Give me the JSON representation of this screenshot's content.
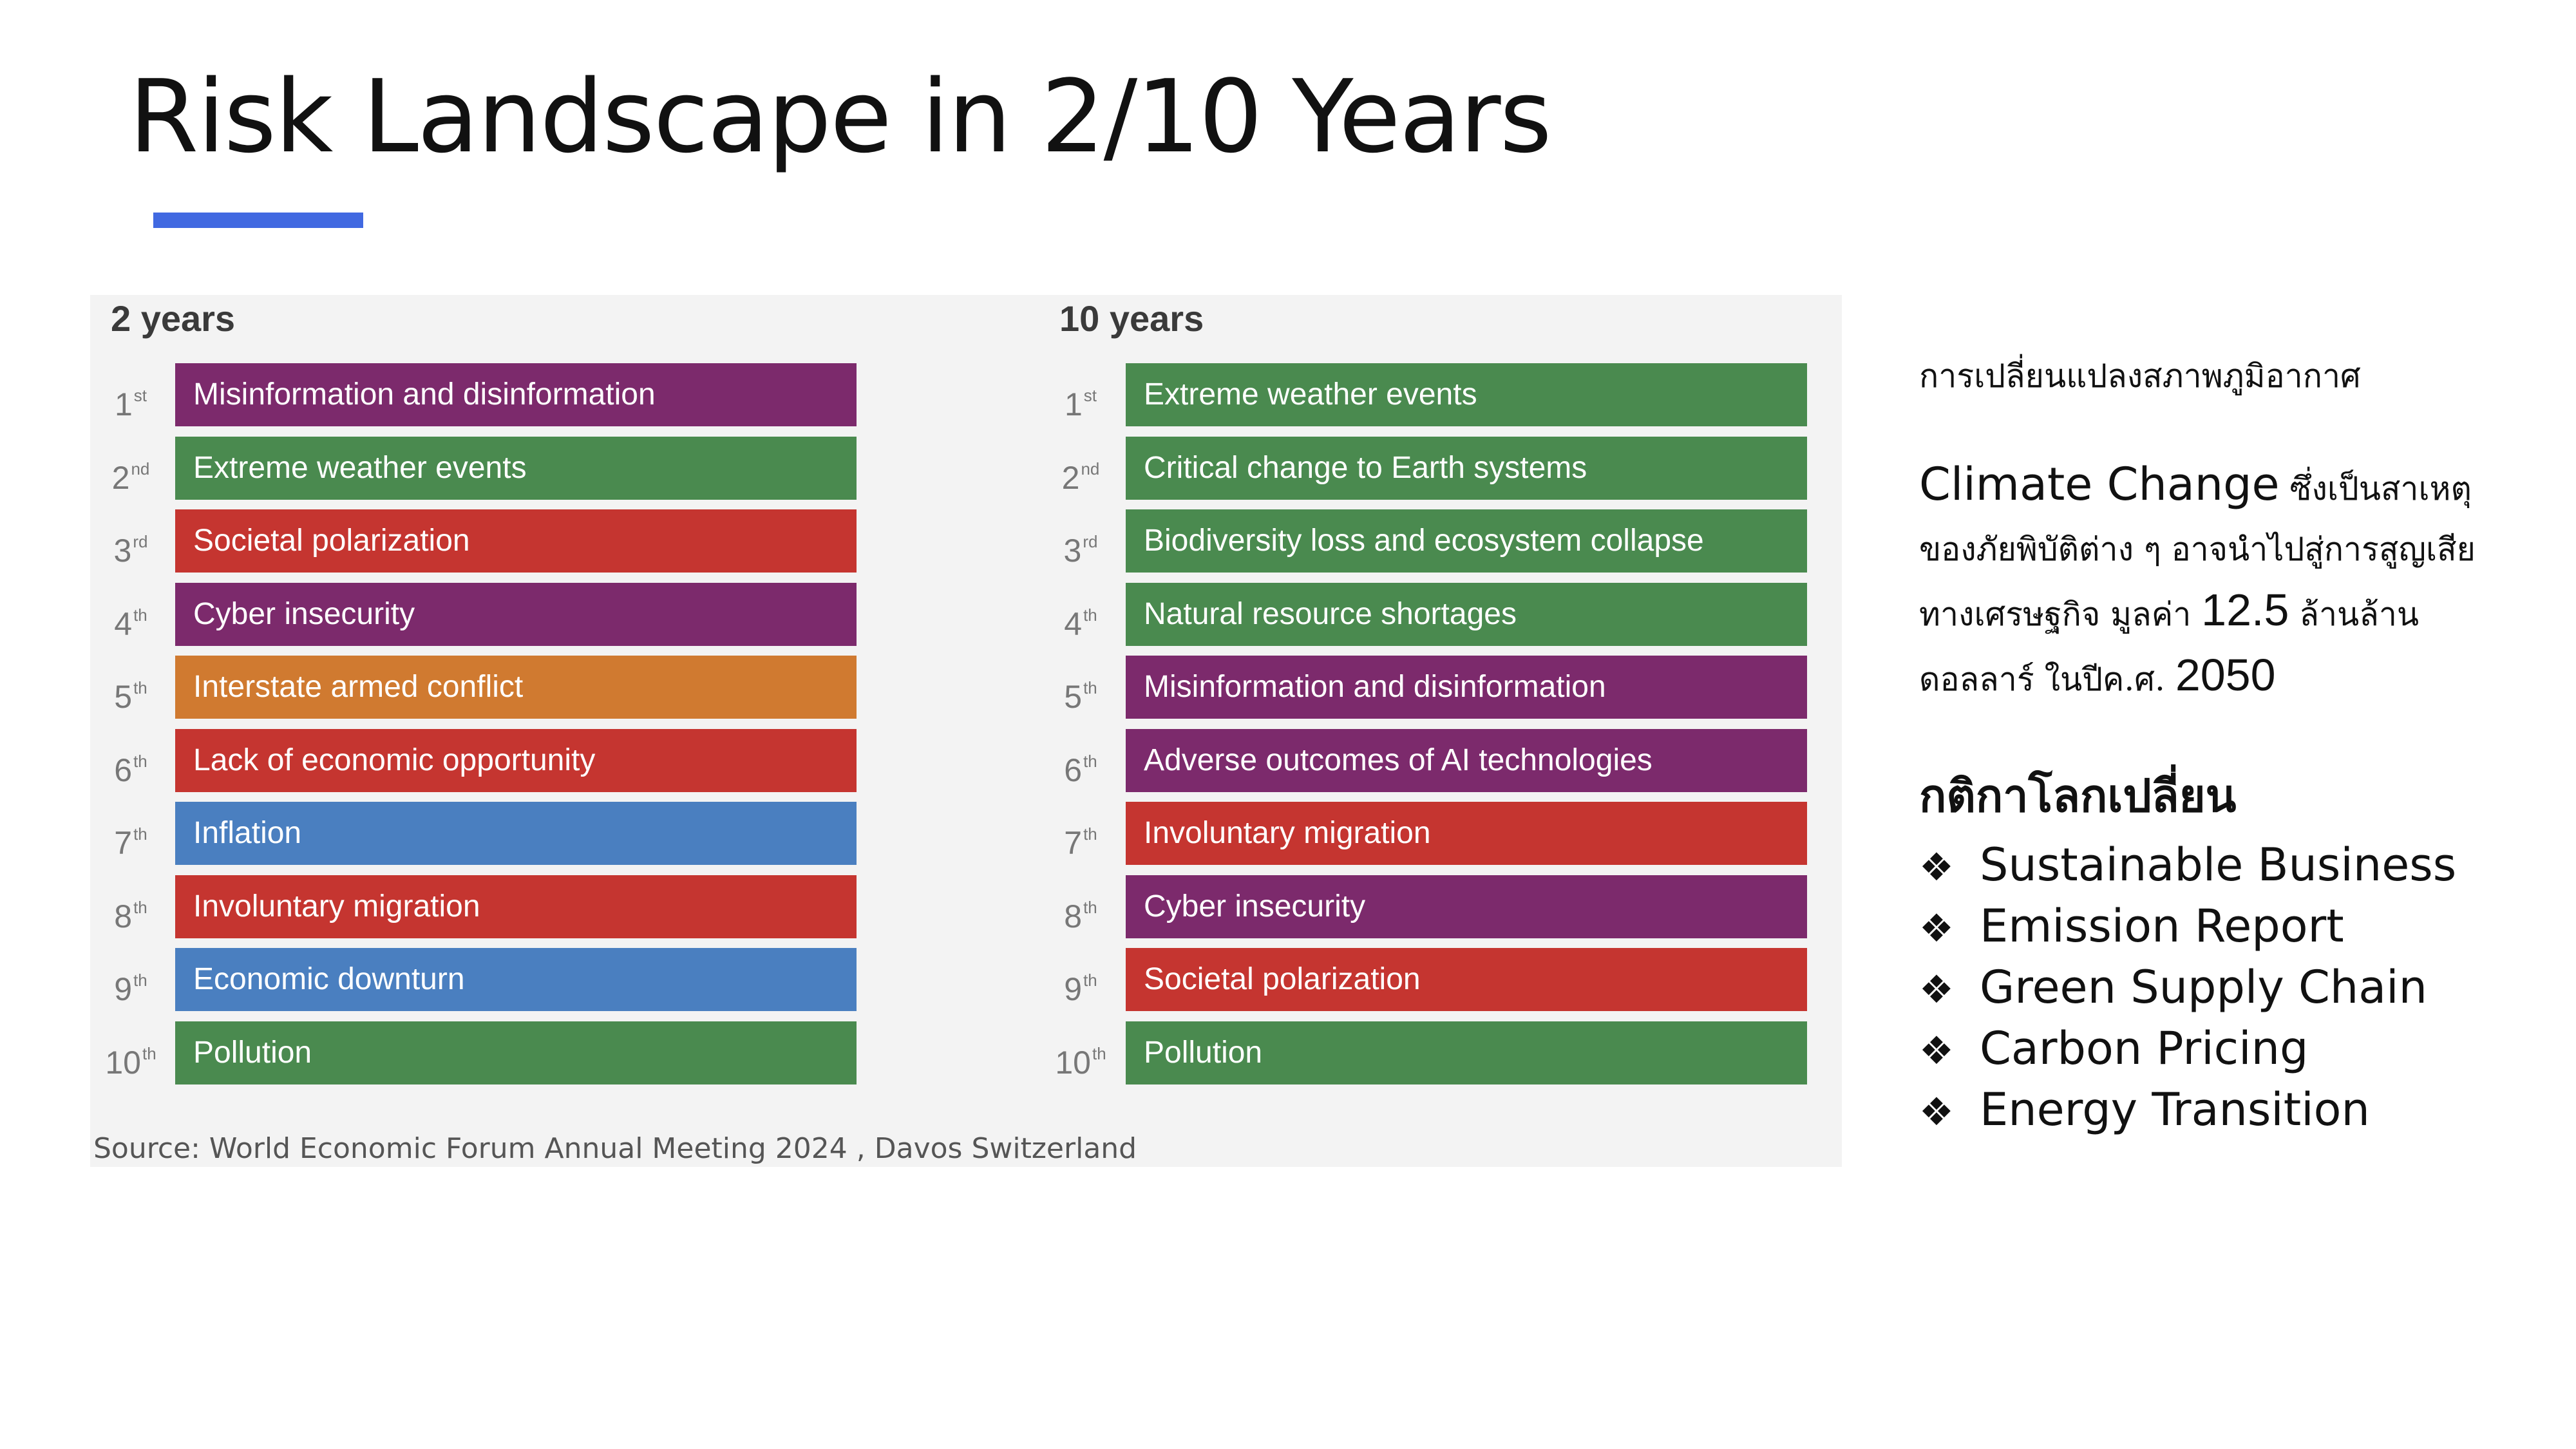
{
  "title": "Risk Landscape in 2/10 Years",
  "colors": {
    "accent_bar": "#4169e1",
    "environmental": "#4a8a4f",
    "societal": "#c53530",
    "technological": "#7c2a6c",
    "geopolitical": "#d07a30",
    "economic": "#4a7fc0"
  },
  "figure": {
    "two_years": {
      "heading": "2 years",
      "items": [
        {
          "num": "1",
          "suffix": "st",
          "label": "Misinformation and disinformation",
          "color": "#7c2a6c"
        },
        {
          "num": "2",
          "suffix": "nd",
          "label": "Extreme weather events",
          "color": "#4a8a4f"
        },
        {
          "num": "3",
          "suffix": "rd",
          "label": "Societal polarization",
          "color": "#c53530"
        },
        {
          "num": "4",
          "suffix": "th",
          "label": "Cyber insecurity",
          "color": "#7c2a6c"
        },
        {
          "num": "5",
          "suffix": "th",
          "label": "Interstate armed conflict",
          "color": "#d07a30"
        },
        {
          "num": "6",
          "suffix": "th",
          "label": "Lack of economic opportunity",
          "color": "#c53530"
        },
        {
          "num": "7",
          "suffix": "th",
          "label": "Inflation",
          "color": "#4a7fc0"
        },
        {
          "num": "8",
          "suffix": "th",
          "label": "Involuntary migration",
          "color": "#c53530"
        },
        {
          "num": "9",
          "suffix": "th",
          "label": "Economic downturn",
          "color": "#4a7fc0"
        },
        {
          "num": "10",
          "suffix": "th",
          "label": "Pollution",
          "color": "#4a8a4f"
        }
      ]
    },
    "ten_years": {
      "heading": "10 years",
      "items": [
        {
          "num": "1",
          "suffix": "st",
          "label": "Extreme weather events",
          "color": "#4a8a4f"
        },
        {
          "num": "2",
          "suffix": "nd",
          "label": "Critical change to Earth systems",
          "color": "#4a8a4f"
        },
        {
          "num": "3",
          "suffix": "rd",
          "label": "Biodiversity loss and ecosystem collapse",
          "color": "#4a8a4f"
        },
        {
          "num": "4",
          "suffix": "th",
          "label": "Natural resource shortages",
          "color": "#4a8a4f"
        },
        {
          "num": "5",
          "suffix": "th",
          "label": "Misinformation and disinformation",
          "color": "#7c2a6c"
        },
        {
          "num": "6",
          "suffix": "th",
          "label": "Adverse outcomes of AI technologies",
          "color": "#7c2a6c"
        },
        {
          "num": "7",
          "suffix": "th",
          "label": "Involuntary migration",
          "color": "#c53530"
        },
        {
          "num": "8",
          "suffix": "th",
          "label": "Cyber insecurity",
          "color": "#7c2a6c"
        },
        {
          "num": "9",
          "suffix": "th",
          "label": "Societal polarization",
          "color": "#c53530"
        },
        {
          "num": "10",
          "suffix": "th",
          "label": "Pollution",
          "color": "#4a8a4f"
        }
      ]
    },
    "source": "Source: World Economic Forum Annual Meeting 2024 , Davos Switzerland"
  },
  "side": {
    "heading1": "การเปลี่ยนแปลงสภาพภูมิอากาศ",
    "para": {
      "en": "Climate Change",
      "t1": " ซึ่งเป็นสาเหตุ",
      "t2": "ของภัยพิบัติต่าง ๆ อาจนำไปสู่การสูญเสีย",
      "t3": "ทางเศรษฐกิจ มูลค่า ",
      "value": "12.5",
      "t4": " ล้านล้าน",
      "t5": "ดอลลาร์ ในปีค.ศ. ",
      "year": "2050"
    },
    "heading2": "กติกาโลกเปลี่ยน",
    "bullet_mark": "❖",
    "bullets": [
      "Sustainable Business",
      "Emission Report",
      "Green Supply Chain",
      "Carbon Pricing",
      "Energy Transition"
    ]
  }
}
